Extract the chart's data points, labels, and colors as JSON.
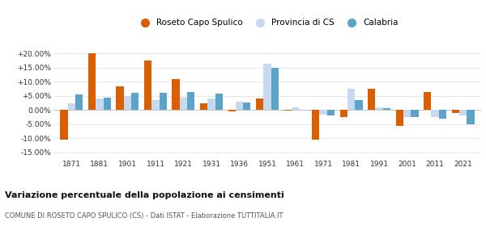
{
  "years": [
    1871,
    1881,
    1901,
    1911,
    1921,
    1931,
    1936,
    1951,
    1961,
    1971,
    1981,
    1991,
    2001,
    2011,
    2021
  ],
  "roseto": [
    -10.5,
    20.0,
    8.5,
    17.5,
    11.0,
    2.5,
    -0.5,
    4.0,
    -0.2,
    -10.5,
    -2.5,
    7.5,
    -5.5,
    6.5,
    -1.0
  ],
  "provincia": [
    2.5,
    4.0,
    5.0,
    3.5,
    4.5,
    4.0,
    3.0,
    16.5,
    1.0,
    -1.5,
    7.5,
    1.0,
    -2.5,
    -2.5,
    -2.0
  ],
  "calabria": [
    5.5,
    4.5,
    6.0,
    6.0,
    6.5,
    5.8,
    2.7,
    15.0,
    0.0,
    -2.0,
    3.5,
    0.8,
    -2.5,
    -3.0,
    -5.0
  ],
  "roseto_color": "#d95f02",
  "provincia_color": "#c6d9f0",
  "calabria_color": "#5ba3c9",
  "title": "Variazione percentuale della popolazione ai censimenti",
  "subtitle": "COMUNE DI ROSETO CAPO SPULICO (CS) - Dati ISTAT - Elaborazione TUTTITALIA.IT",
  "legend_labels": [
    "Roseto Capo Spulico",
    "Provincia di CS",
    "Calabria"
  ],
  "ylim": [
    -17,
    23
  ],
  "yticks": [
    -15,
    -10,
    -5,
    0,
    5,
    10,
    15,
    20
  ],
  "ytick_labels": [
    "-15.00%",
    "-10.00%",
    "-5.00%",
    "0.00%",
    "+5.00%",
    "+10.00%",
    "+15.00%",
    "+20.00%"
  ],
  "bg_color": "#ffffff",
  "grid_color": "#dddddd"
}
